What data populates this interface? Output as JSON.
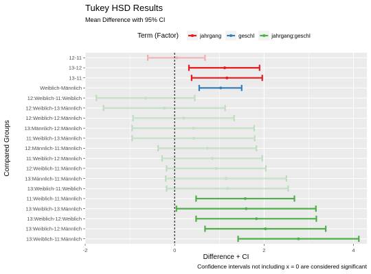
{
  "chart_data": {
    "type": "errorbar",
    "title": "Tukey HSD Results",
    "subtitle": "Mean Difference with 95% CI",
    "xlabel": "Difference + CI",
    "ylabel": "Compared Groups",
    "caption": "Confidence intervals not including x = 0 are considered significant",
    "xlim": [
      -2,
      4.3
    ],
    "xticks": [
      -2,
      0,
      2,
      4
    ],
    "reference_line": 0,
    "legend": {
      "title": "Term (Factor)",
      "position": "top",
      "entries": [
        {
          "name": "jahrgang",
          "color": "#e41a1c"
        },
        {
          "name": "geschl",
          "color": "#377eb8"
        },
        {
          "name": "jahrgang:geschl",
          "color": "#4daf4a"
        }
      ]
    },
    "rows": [
      {
        "label": "12-11",
        "term": "jahrgang",
        "diff": 0.05,
        "lwr": -0.6,
        "upr": 0.68,
        "significant": false
      },
      {
        "label": "13-12",
        "term": "jahrgang",
        "diff": 1.12,
        "lwr": 0.32,
        "upr": 1.9,
        "significant": true
      },
      {
        "label": "13-11",
        "term": "jahrgang",
        "diff": 1.17,
        "lwr": 0.38,
        "upr": 1.96,
        "significant": true
      },
      {
        "label": "Weiblich-Männlich",
        "term": "geschl",
        "diff": 1.03,
        "lwr": 0.55,
        "upr": 1.5,
        "significant": true
      },
      {
        "label": "12:Weiblich-11:Weiblich",
        "term": "jahrgang:geschl",
        "diff": -0.65,
        "lwr": -1.75,
        "upr": 0.45,
        "significant": false
      },
      {
        "label": "12:Weiblich-13:Männlich",
        "term": "jahrgang:geschl",
        "diff": -0.23,
        "lwr": -1.59,
        "upr": 1.13,
        "significant": false
      },
      {
        "label": "12:Weiblich-12:Männlich",
        "term": "jahrgang:geschl",
        "diff": 0.2,
        "lwr": -0.93,
        "upr": 1.33,
        "significant": false
      },
      {
        "label": "13:Männlich-12:Männlich",
        "term": "jahrgang:geschl",
        "diff": 0.42,
        "lwr": -0.95,
        "upr": 1.78,
        "significant": false
      },
      {
        "label": "11:Weiblich-13:Männlich",
        "term": "jahrgang:geschl",
        "diff": 0.43,
        "lwr": -0.95,
        "upr": 1.79,
        "significant": false
      },
      {
        "label": "12:Männlich-11:Männlich",
        "term": "jahrgang:geschl",
        "diff": 0.73,
        "lwr": -0.37,
        "upr": 1.83,
        "significant": false
      },
      {
        "label": "11:Weiblich-12:Männlich",
        "term": "jahrgang:geschl",
        "diff": 0.84,
        "lwr": -0.28,
        "upr": 1.96,
        "significant": false
      },
      {
        "label": "12:Weiblich-11:Männlich",
        "term": "jahrgang:geschl",
        "diff": 0.93,
        "lwr": -0.18,
        "upr": 2.04,
        "significant": false
      },
      {
        "label": "13:Männlich-11:Männlich",
        "term": "jahrgang:geschl",
        "diff": 1.15,
        "lwr": -0.2,
        "upr": 2.5,
        "significant": false
      },
      {
        "label": "13:Weiblich-11:Weiblich",
        "term": "jahrgang:geschl",
        "diff": 1.18,
        "lwr": -0.18,
        "upr": 2.54,
        "significant": false
      },
      {
        "label": "11:Weiblich-11:Männlich",
        "term": "jahrgang:geschl",
        "diff": 1.58,
        "lwr": 0.48,
        "upr": 2.68,
        "significant": true
      },
      {
        "label": "13:Weiblich-13:Männlich",
        "term": "jahrgang:geschl",
        "diff": 1.6,
        "lwr": 0.04,
        "upr": 3.16,
        "significant": true
      },
      {
        "label": "13:Weiblich-12:Weiblich",
        "term": "jahrgang:geschl",
        "diff": 1.83,
        "lwr": 0.48,
        "upr": 3.17,
        "significant": true
      },
      {
        "label": "13:Weiblich-12:Männlich",
        "term": "jahrgang:geschl",
        "diff": 2.03,
        "lwr": 0.68,
        "upr": 3.38,
        "significant": true
      },
      {
        "label": "13:Weiblich-11:Männlich",
        "term": "jahrgang:geschl",
        "diff": 2.77,
        "lwr": 1.42,
        "upr": 4.12,
        "significant": true
      }
    ]
  }
}
